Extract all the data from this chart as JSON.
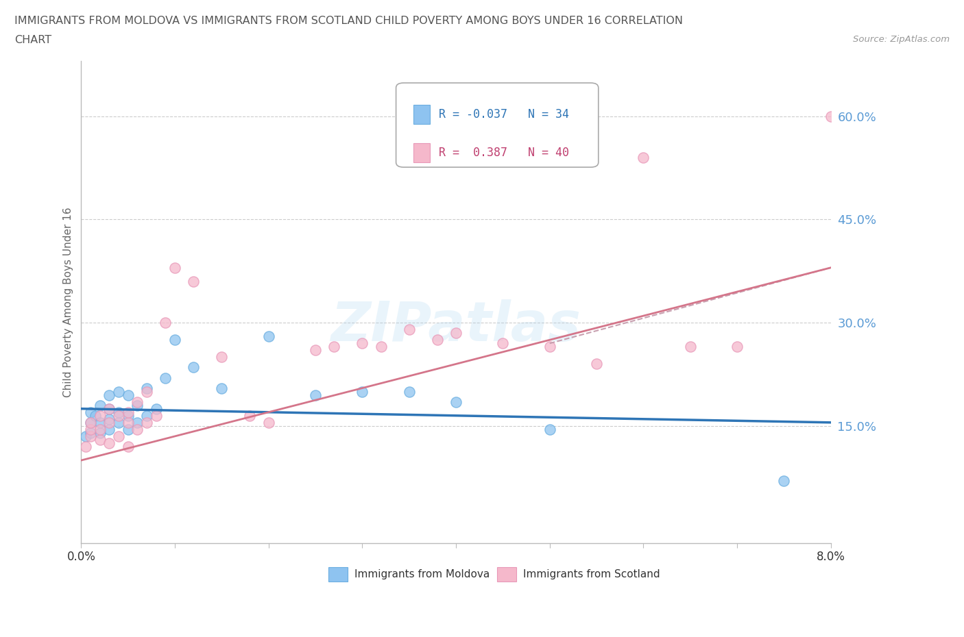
{
  "title_line1": "IMMIGRANTS FROM MOLDOVA VS IMMIGRANTS FROM SCOTLAND CHILD POVERTY AMONG BOYS UNDER 16 CORRELATION",
  "title_line2": "CHART",
  "source": "Source: ZipAtlas.com",
  "ylabel": "Child Poverty Among Boys Under 16",
  "xlim": [
    0.0,
    0.08
  ],
  "ylim": [
    -0.02,
    0.68
  ],
  "y_tick_values_right": [
    0.15,
    0.3,
    0.45,
    0.6
  ],
  "watermark": "ZIPatlas",
  "moldova_color": "#8ec3f0",
  "moldova_edge_color": "#6aaee0",
  "scotland_color": "#f5b8cb",
  "scotland_edge_color": "#e898b8",
  "moldova_R": -0.037,
  "moldova_N": 34,
  "scotland_R": 0.387,
  "scotland_N": 40,
  "moldova_scatter_x": [
    0.0005,
    0.001,
    0.001,
    0.001,
    0.0015,
    0.002,
    0.002,
    0.002,
    0.003,
    0.003,
    0.003,
    0.003,
    0.004,
    0.004,
    0.004,
    0.005,
    0.005,
    0.005,
    0.006,
    0.006,
    0.007,
    0.007,
    0.008,
    0.009,
    0.01,
    0.012,
    0.015,
    0.02,
    0.025,
    0.03,
    0.035,
    0.04,
    0.05,
    0.075
  ],
  "moldova_scatter_y": [
    0.135,
    0.14,
    0.155,
    0.17,
    0.165,
    0.14,
    0.155,
    0.18,
    0.145,
    0.16,
    0.175,
    0.195,
    0.155,
    0.17,
    0.2,
    0.145,
    0.165,
    0.195,
    0.155,
    0.18,
    0.165,
    0.205,
    0.175,
    0.22,
    0.275,
    0.235,
    0.205,
    0.28,
    0.195,
    0.2,
    0.2,
    0.185,
    0.145,
    0.07
  ],
  "scotland_scatter_x": [
    0.0005,
    0.001,
    0.001,
    0.001,
    0.002,
    0.002,
    0.002,
    0.003,
    0.003,
    0.003,
    0.004,
    0.004,
    0.005,
    0.005,
    0.005,
    0.006,
    0.006,
    0.007,
    0.007,
    0.008,
    0.009,
    0.01,
    0.012,
    0.015,
    0.018,
    0.02,
    0.025,
    0.027,
    0.03,
    0.032,
    0.035,
    0.038,
    0.04,
    0.045,
    0.05,
    0.055,
    0.06,
    0.065,
    0.07,
    0.08
  ],
  "scotland_scatter_y": [
    0.12,
    0.135,
    0.145,
    0.155,
    0.13,
    0.145,
    0.165,
    0.125,
    0.155,
    0.175,
    0.135,
    0.165,
    0.12,
    0.155,
    0.17,
    0.145,
    0.185,
    0.155,
    0.2,
    0.165,
    0.3,
    0.38,
    0.36,
    0.25,
    0.165,
    0.155,
    0.26,
    0.265,
    0.27,
    0.265,
    0.29,
    0.275,
    0.285,
    0.27,
    0.265,
    0.24,
    0.54,
    0.265,
    0.265,
    0.6
  ],
  "moldova_trendline_x": [
    0.0,
    0.08
  ],
  "moldova_trendline_y": [
    0.175,
    0.155
  ],
  "scotland_trendline_x": [
    0.0,
    0.08
  ],
  "scotland_trendline_y": [
    0.1,
    0.38
  ],
  "grid_color": "#cccccc",
  "background_color": "#ffffff",
  "title_color": "#555555",
  "axis_label_color": "#666666",
  "right_axis_color": "#5b9bd5",
  "moldova_trend_color": "#2E75B6",
  "scotland_trend_color": "#d4758a",
  "scotland_dash_color": "#c8a0b0"
}
